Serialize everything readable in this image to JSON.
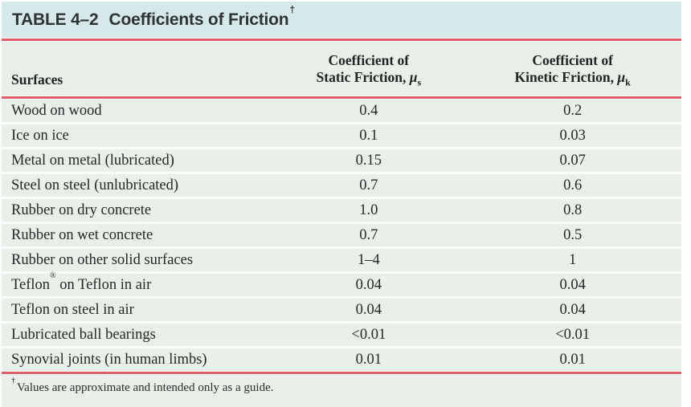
{
  "table": {
    "title": {
      "label": "TABLE 4–2",
      "text": "Coefficients of Friction",
      "dagger": "†"
    },
    "columns": {
      "surfaces": "Surfaces",
      "static": {
        "line1": "Coefficient of",
        "line2": "Static Friction, ",
        "symbol": "μ",
        "sub": "s"
      },
      "kinetic": {
        "line1": "Coefficient of",
        "line2": "Kinetic Friction, ",
        "symbol": "μ",
        "sub": "k"
      }
    },
    "rows": [
      {
        "surface": "Wood on wood",
        "static": "0.4",
        "kinetic": "0.2"
      },
      {
        "surface": "Ice on ice",
        "static": "0.1",
        "kinetic": "0.03"
      },
      {
        "surface": "Metal on metal (lubricated)",
        "static": "0.15",
        "kinetic": "0.07"
      },
      {
        "surface": "Steel on steel (unlubricated)",
        "static": "0.7",
        "kinetic": "0.6"
      },
      {
        "surface": "Rubber on dry concrete",
        "static": "1.0",
        "kinetic": "0.8"
      },
      {
        "surface": "Rubber on wet concrete",
        "static": "0.7",
        "kinetic": "0.5"
      },
      {
        "surface": "Rubber on other solid surfaces",
        "static": "1–4",
        "kinetic": "1"
      },
      {
        "surface_pre": "Teflon",
        "surface_sup": "®",
        "surface_post": " on Teflon in air",
        "static": "0.04",
        "kinetic": "0.04"
      },
      {
        "surface": "Teflon on steel in air",
        "static": "0.04",
        "kinetic": "0.04"
      },
      {
        "surface": "Lubricated ball bearings",
        "static": "<0.01",
        "kinetic": "<0.01"
      },
      {
        "surface": "Synovial joints (in human limbs)",
        "static": "0.01",
        "kinetic": "0.01"
      }
    ],
    "footnote": {
      "symbol": "†",
      "text": "Values are approximate and intended only as a guide."
    }
  },
  "colors": {
    "title_bg": "#d6e8ea",
    "body_bg": "#e8f0e9",
    "rule": "#df5f68",
    "text": "#272727"
  }
}
